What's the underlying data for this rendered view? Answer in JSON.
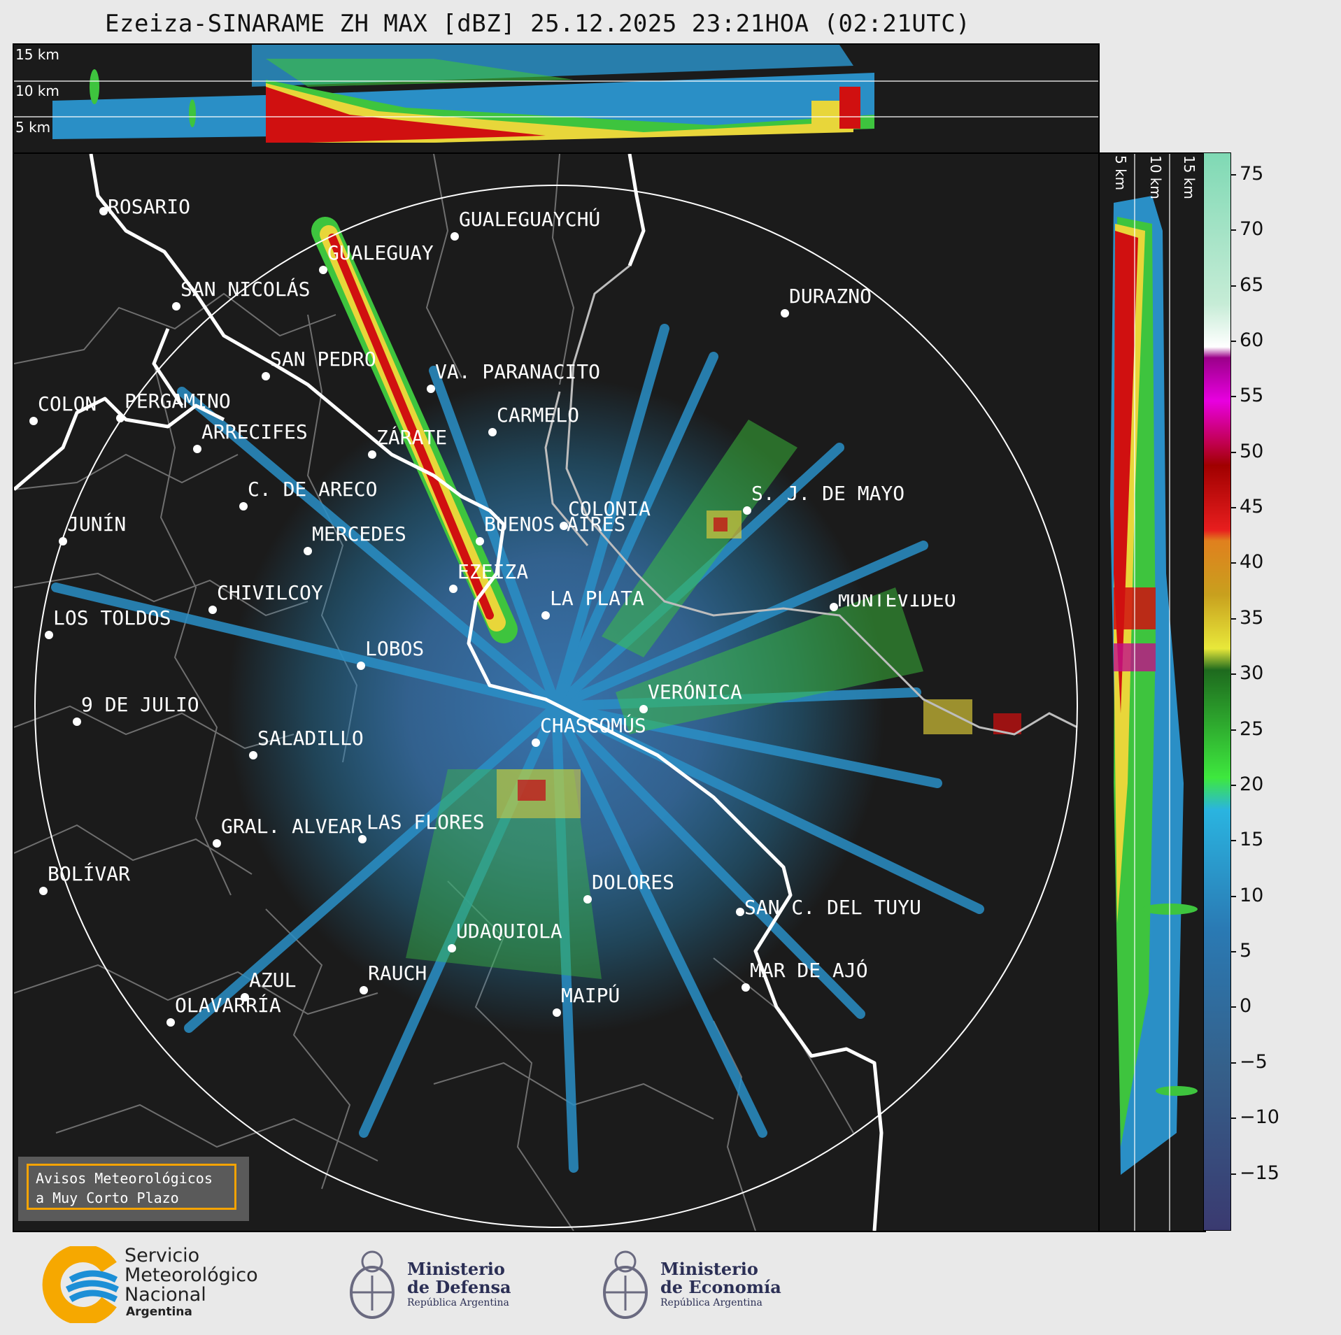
{
  "title": "Ezeiza-SINARAME ZH MAX [dBZ] 25.12.2025 23:21HOA (02:21UTC)",
  "top_panel": {
    "altitude_labels": [
      "15 km",
      "10 km",
      "5 km"
    ]
  },
  "side_panel": {
    "altitude_labels": [
      "5 km",
      "10 km",
      "15 km"
    ]
  },
  "colorbar": {
    "ticks": [
      "75",
      "70",
      "65",
      "60",
      "55",
      "50",
      "45",
      "40",
      "35",
      "30",
      "25",
      "20",
      "15",
      "10",
      "5",
      "0",
      "−5",
      "−10",
      "−15"
    ],
    "min": -20,
    "max": 77
  },
  "cities": [
    {
      "name": "ROSARIO"
    },
    {
      "name": "GUALEGUAYCHÚ"
    },
    {
      "name": "GUALEGUAY"
    },
    {
      "name": "SAN NICOLÁS"
    },
    {
      "name": "DURAZNO"
    },
    {
      "name": "SAN PEDRO"
    },
    {
      "name": "VA. PARANACITO"
    },
    {
      "name": "COLON"
    },
    {
      "name": "PERGAMINO"
    },
    {
      "name": "CARMELO"
    },
    {
      "name": "ARRECIFES"
    },
    {
      "name": "ZÁRATE"
    },
    {
      "name": "S. J. DE MAYO"
    },
    {
      "name": "C. DE ARECO"
    },
    {
      "name": "COLONIA"
    },
    {
      "name": "JUNÍN"
    },
    {
      "name": "BUENOS AIRES"
    },
    {
      "name": "MERCEDES"
    },
    {
      "name": "EZEIZA"
    },
    {
      "name": "MONTEVIDEO"
    },
    {
      "name": "CHIVILCOY"
    },
    {
      "name": "LA PLATA"
    },
    {
      "name": "LOS TOLDOS"
    },
    {
      "name": "LOBOS"
    },
    {
      "name": "VERÓNICA"
    },
    {
      "name": "9 DE JULIO"
    },
    {
      "name": "SALADILLO"
    },
    {
      "name": "CHASCOMÚS"
    },
    {
      "name": "GRAL. ALVEAR"
    },
    {
      "name": "LAS FLORES"
    },
    {
      "name": "BOLÍVAR"
    },
    {
      "name": "DOLORES"
    },
    {
      "name": "SAN C. DEL TUYÚ"
    },
    {
      "name": "UDAQUIOLA"
    },
    {
      "name": "MAR DE AJÓ"
    },
    {
      "name": "AZUL"
    },
    {
      "name": "OLAVARRÍA"
    },
    {
      "name": "RAUCH"
    },
    {
      "name": "MAIPÚ"
    }
  ],
  "warning": {
    "line1": "Avisos Meteorológicos",
    "line2": "a Muy Corto Plazo"
  },
  "logos": {
    "smn": {
      "line1": "Servicio",
      "line2": "Meteorológico",
      "line3": "Nacional",
      "line4": "Argentina"
    },
    "defensa": {
      "line1": "Ministerio",
      "line2": "de Defensa",
      "line3": "República Argentina"
    },
    "economia": {
      "line1": "Ministerio",
      "line2": "de Economía",
      "line3": "República Argentina"
    }
  },
  "colors": {
    "background": "#1b1b1b",
    "page": "#e9e9e9",
    "accent": "#f5a300",
    "smn_blue": "#1c8fd6",
    "smn_yellow": "#f6a800"
  }
}
